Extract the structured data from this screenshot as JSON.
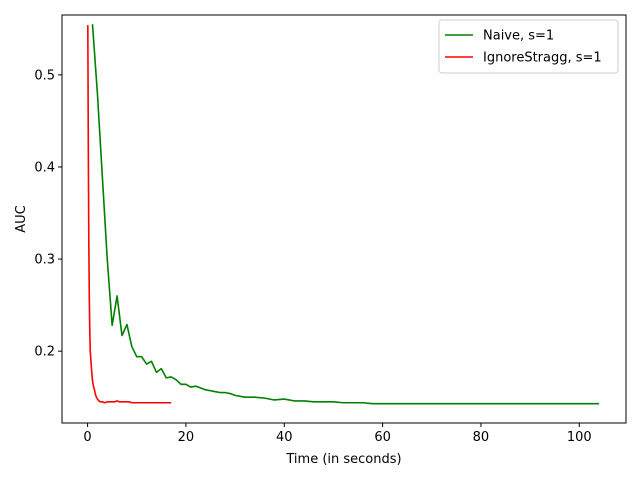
{
  "chart_data": {
    "type": "line",
    "title": "",
    "xlabel": "Time (in seconds)",
    "ylabel": "AUC",
    "xlim": [
      -5.2,
      109.5
    ],
    "ylim": [
      0.122,
      0.565
    ],
    "xticks": [
      0,
      20,
      40,
      60,
      80,
      100
    ],
    "yticks": [
      0.2,
      0.3,
      0.4,
      0.5
    ],
    "xtick_labels": [
      "0",
      "20",
      "40",
      "60",
      "80",
      "100"
    ],
    "ytick_labels": [
      "0.2",
      "0.3",
      "0.4",
      "0.5"
    ],
    "grid": false,
    "legend_position": "top-right",
    "series": [
      {
        "name": "Naive, s=1",
        "color": "#008000",
        "x": [
          1.0,
          2.0,
          3.0,
          4.0,
          5.0,
          6.0,
          7.0,
          8.0,
          9.0,
          10.0,
          11.0,
          12.0,
          13.0,
          14.0,
          15.0,
          16.0,
          17.0,
          18.0,
          19.0,
          20.0,
          21.0,
          22.0,
          23.0,
          24.0,
          25.0,
          26.0,
          27.0,
          28.0,
          29.0,
          30.0,
          32.0,
          34.0,
          36.0,
          38.0,
          40.0,
          42.0,
          44.0,
          46.0,
          48.0,
          50.0,
          52.0,
          54.0,
          56.0,
          58.0,
          60.0,
          62.0,
          64.0,
          66.0,
          68.0,
          70.0,
          72.0,
          74.0,
          76.0,
          78.0,
          80.0,
          82.0,
          84.0,
          86.0,
          88.0,
          90.0,
          92.0,
          94.0,
          96.0,
          98.0,
          100.0,
          102.0,
          104.0
        ],
        "values": [
          0.555,
          0.48,
          0.39,
          0.3,
          0.228,
          0.26,
          0.217,
          0.229,
          0.205,
          0.194,
          0.194,
          0.186,
          0.189,
          0.177,
          0.181,
          0.171,
          0.172,
          0.169,
          0.164,
          0.164,
          0.161,
          0.162,
          0.16,
          0.158,
          0.157,
          0.156,
          0.155,
          0.155,
          0.154,
          0.152,
          0.15,
          0.15,
          0.149,
          0.147,
          0.148,
          0.146,
          0.146,
          0.145,
          0.145,
          0.145,
          0.144,
          0.144,
          0.144,
          0.143,
          0.143,
          0.143,
          0.143,
          0.143,
          0.143,
          0.143,
          0.143,
          0.143,
          0.143,
          0.143,
          0.143,
          0.143,
          0.143,
          0.143,
          0.143,
          0.143,
          0.143,
          0.143,
          0.143,
          0.143,
          0.143,
          0.143,
          0.143
        ]
      },
      {
        "name": "IgnoreStragg, s=1",
        "color": "#ff0000",
        "x": [
          0.05,
          0.15,
          0.25,
          0.35,
          0.45,
          0.55,
          0.7,
          0.85,
          1.0,
          1.2,
          1.4,
          1.6,
          1.8,
          2.0,
          2.3,
          2.6,
          3.0,
          3.5,
          4.0,
          4.5,
          5.0,
          5.5,
          6.0,
          6.5,
          7.0,
          7.5,
          8.0,
          8.5,
          9.0,
          9.5,
          10.0,
          10.5,
          11.0,
          12.0,
          13.0,
          14.0,
          15.0,
          16.0,
          17.0
        ],
        "values": [
          0.554,
          0.42,
          0.32,
          0.26,
          0.222,
          0.2,
          0.188,
          0.178,
          0.168,
          0.162,
          0.158,
          0.153,
          0.15,
          0.148,
          0.146,
          0.145,
          0.145,
          0.144,
          0.145,
          0.145,
          0.145,
          0.145,
          0.146,
          0.145,
          0.145,
          0.145,
          0.145,
          0.145,
          0.144,
          0.144,
          0.144,
          0.144,
          0.144,
          0.144,
          0.144,
          0.144,
          0.144,
          0.144,
          0.144
        ]
      }
    ]
  }
}
